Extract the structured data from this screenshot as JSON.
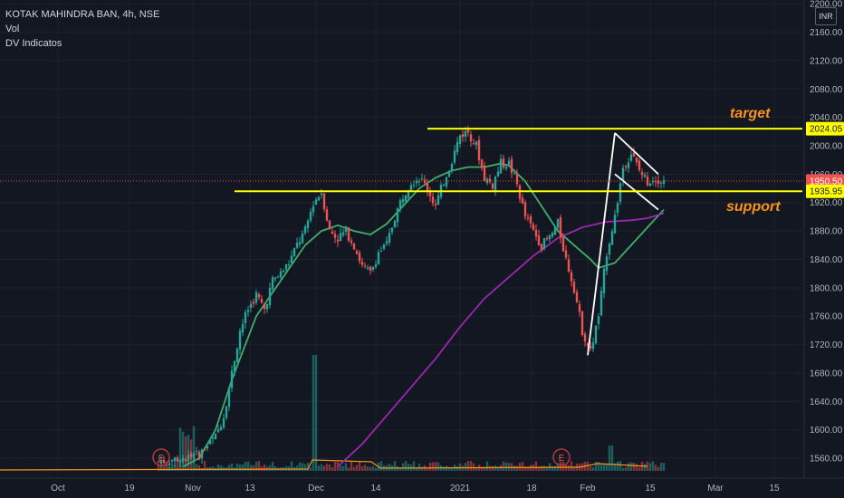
{
  "legend": {
    "symbol": "KOTAK MAHINDRA BAN, 4h, NSE",
    "vol": "Vol",
    "indicator": "DV Indicatos"
  },
  "currency_button": "INR",
  "colors": {
    "background": "#131722",
    "up": "#26a69a",
    "down": "#ef5350",
    "level": "#ffff00",
    "ma_fast": "#3fae6a",
    "ma_slow": "#9c27b0",
    "annotation": "#f7931a"
  },
  "chart_data": {
    "type": "candlestick",
    "symbol": "KOTAK MAHINDRA BAN",
    "interval": "4h",
    "exchange": "NSE",
    "ylim": [
      1545,
      2220
    ],
    "y_ticks": [
      1560,
      1600,
      1640,
      1680,
      1720,
      1760,
      1800,
      1840,
      1880,
      1920,
      1960,
      2000,
      2040,
      2080,
      2120,
      2160,
      2200
    ],
    "x_ticks": [
      "Oct",
      "19",
      "Nov",
      "13",
      "Dec",
      "14",
      "2021",
      "18",
      "Feb",
      "15",
      "Mar",
      "15"
    ],
    "price_tags": [
      {
        "value": 2024.05,
        "label": "2024.05",
        "kind": "level"
      },
      {
        "value": 1950.5,
        "label": "1950.50",
        "kind": "last"
      },
      {
        "value": 1935.95,
        "label": "1935.95",
        "kind": "level"
      }
    ],
    "horizontal_levels": [
      {
        "value": 2024.05,
        "label": "target",
        "from": "Dec 28"
      },
      {
        "value": 1935.95,
        "label": "support",
        "from": "Nov 19"
      }
    ],
    "last_price": 1950.5,
    "earnings_markers": [
      "Oct 26",
      "Jan 25"
    ],
    "annotations": [
      "target",
      "support"
    ],
    "price_path": [
      [
        0,
        1555
      ],
      [
        3,
        1560
      ],
      [
        5,
        1565
      ],
      [
        7,
        1590
      ],
      [
        8,
        1620
      ],
      [
        9,
        1680
      ],
      [
        10,
        1740
      ],
      [
        11,
        1770
      ],
      [
        12,
        1790
      ],
      [
        13,
        1770
      ],
      [
        14,
        1810
      ],
      [
        15,
        1820
      ],
      [
        16,
        1835
      ],
      [
        17,
        1860
      ],
      [
        18,
        1880
      ],
      [
        19,
        1920
      ],
      [
        20,
        1935
      ],
      [
        21,
        1880
      ],
      [
        22,
        1870
      ],
      [
        23,
        1880
      ],
      [
        24,
        1860
      ],
      [
        25,
        1830
      ],
      [
        26,
        1820
      ],
      [
        27,
        1850
      ],
      [
        28,
        1860
      ],
      [
        29,
        1900
      ],
      [
        30,
        1930
      ],
      [
        31,
        1950
      ],
      [
        32,
        1955
      ],
      [
        33,
        1940
      ],
      [
        34,
        1915
      ],
      [
        35,
        1950
      ],
      [
        36,
        1980
      ],
      [
        37,
        2015
      ],
      [
        38,
        2020
      ],
      [
        39,
        2000
      ],
      [
        40,
        1955
      ],
      [
        41,
        1945
      ],
      [
        42,
        1975
      ],
      [
        43,
        1975
      ],
      [
        44,
        1945
      ],
      [
        45,
        1900
      ],
      [
        46,
        1880
      ],
      [
        47,
        1860
      ],
      [
        48,
        1870
      ],
      [
        49,
        1890
      ],
      [
        50,
        1840
      ],
      [
        51,
        1800
      ],
      [
        52,
        1740
      ],
      [
        53,
        1710
      ],
      [
        54,
        1760
      ],
      [
        55,
        1850
      ],
      [
        56,
        1900
      ],
      [
        57,
        1970
      ],
      [
        58,
        1990
      ],
      [
        59,
        1965
      ],
      [
        60,
        1950
      ],
      [
        61,
        1955
      ],
      [
        62,
        1950
      ]
    ],
    "ma_fast_path": [
      [
        3,
        1548
      ],
      [
        5,
        1560
      ],
      [
        7,
        1600
      ],
      [
        9,
        1670
      ],
      [
        12,
        1760
      ],
      [
        15,
        1810
      ],
      [
        18,
        1860
      ],
      [
        20,
        1880
      ],
      [
        22,
        1888
      ],
      [
        24,
        1880
      ],
      [
        26,
        1875
      ],
      [
        28,
        1890
      ],
      [
        30,
        1915
      ],
      [
        32,
        1940
      ],
      [
        34,
        1955
      ],
      [
        36,
        1965
      ],
      [
        38,
        1970
      ],
      [
        40,
        1970
      ],
      [
        42,
        1975
      ],
      [
        43,
        1972
      ],
      [
        45,
        1950
      ],
      [
        47,
        1915
      ],
      [
        49,
        1880
      ],
      [
        51,
        1860
      ],
      [
        53,
        1840
      ],
      [
        54,
        1828
      ],
      [
        56,
        1835
      ],
      [
        58,
        1860
      ],
      [
        60,
        1885
      ],
      [
        62,
        1910
      ]
    ],
    "ma_slow_path": [
      [
        22,
        1548
      ],
      [
        25,
        1580
      ],
      [
        28,
        1620
      ],
      [
        31,
        1660
      ],
      [
        34,
        1700
      ],
      [
        37,
        1745
      ],
      [
        40,
        1785
      ],
      [
        43,
        1815
      ],
      [
        46,
        1845
      ],
      [
        49,
        1870
      ],
      [
        52,
        1885
      ],
      [
        55,
        1893
      ],
      [
        58,
        1895
      ],
      [
        60,
        1898
      ],
      [
        62,
        1905
      ]
    ]
  }
}
